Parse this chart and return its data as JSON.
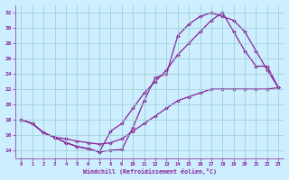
{
  "xlabel": "Windchill (Refroidissement éolien,°C)",
  "xlim": [
    -0.5,
    23.5
  ],
  "ylim": [
    13,
    33
  ],
  "yticks": [
    14,
    16,
    18,
    20,
    22,
    24,
    26,
    28,
    30,
    32
  ],
  "xticks": [
    0,
    1,
    2,
    3,
    4,
    5,
    6,
    7,
    8,
    9,
    10,
    11,
    12,
    13,
    14,
    15,
    16,
    17,
    18,
    19,
    20,
    21,
    22,
    23
  ],
  "background_color": "#cceeff",
  "grid_color": "#99cccc",
  "line_color": "#882299",
  "marker": "D",
  "markersize": 1.8,
  "linewidth": 0.9,
  "series": [
    {
      "x": [
        0,
        1,
        2,
        3,
        4,
        5,
        6,
        7,
        8,
        9,
        10,
        11,
        12,
        13,
        14,
        15,
        16,
        17,
        18,
        19,
        20,
        21,
        22,
        23
      ],
      "y": [
        18,
        17.5,
        16.3,
        15.7,
        15.0,
        14.5,
        14.2,
        13.8,
        14.0,
        14.1,
        17.0,
        20.5,
        23.5,
        24.0,
        29.0,
        30.5,
        31.5,
        32.0,
        31.5,
        31.0,
        29.5,
        27.0,
        24.5,
        22.2
      ]
    },
    {
      "x": [
        0,
        1,
        2,
        3,
        4,
        5,
        6,
        7,
        8,
        9,
        10,
        11,
        12,
        13,
        14,
        15,
        16,
        17,
        18,
        19,
        20,
        21,
        22,
        23
      ],
      "y": [
        18,
        17.5,
        16.3,
        15.7,
        15.5,
        15.2,
        15.0,
        14.8,
        15.0,
        15.5,
        16.5,
        17.5,
        18.5,
        19.5,
        20.5,
        21.0,
        21.5,
        22.0,
        22.0,
        22.0,
        22.0,
        22.0,
        22.0,
        22.2
      ]
    },
    {
      "x": [
        0,
        1,
        2,
        3,
        4,
        5,
        6,
        7,
        8,
        9,
        10,
        11,
        12,
        13,
        14,
        15,
        16,
        17,
        18,
        19,
        20,
        21,
        22,
        23
      ],
      "y": [
        18,
        17.5,
        16.3,
        15.7,
        15.0,
        14.5,
        14.2,
        13.8,
        16.5,
        17.5,
        19.5,
        21.5,
        23.0,
        24.5,
        26.5,
        28.0,
        29.5,
        31.0,
        32.0,
        29.5,
        27.0,
        25.0,
        25.0,
        22.2
      ]
    }
  ]
}
